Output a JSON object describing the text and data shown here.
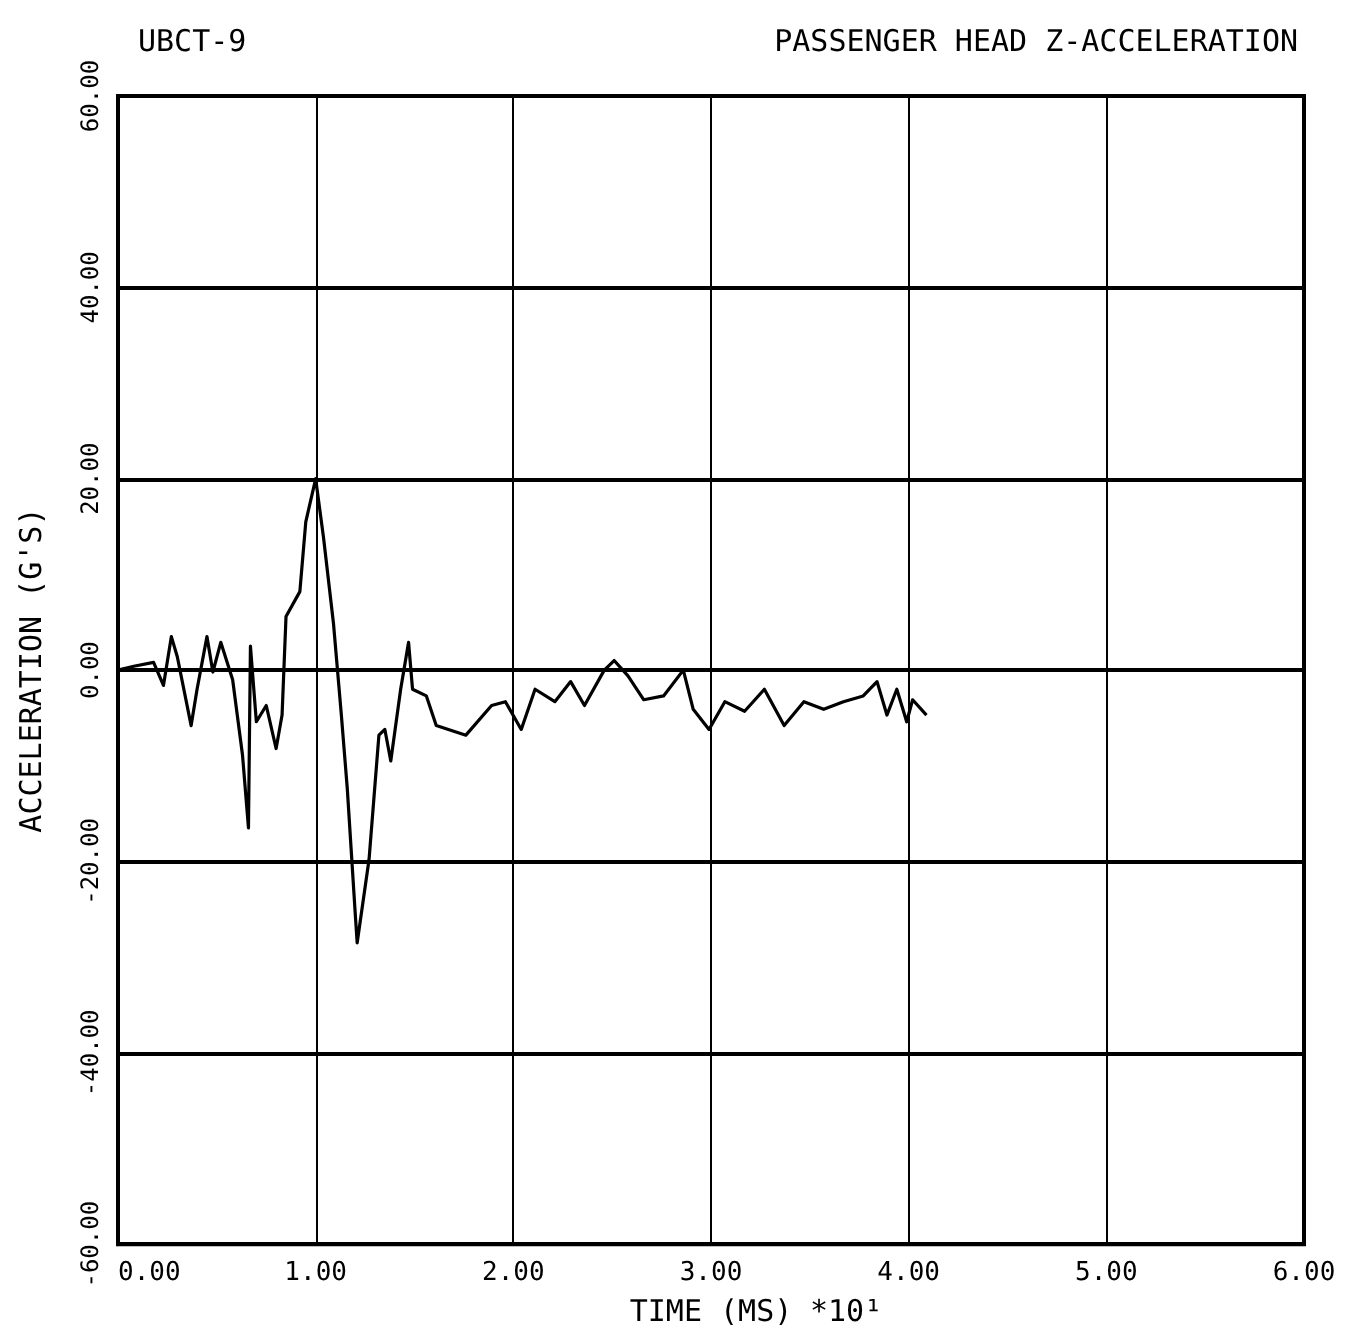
{
  "chart_data": {
    "type": "line",
    "title": "PASSENGER HEAD Z-ACCELERATION",
    "subtitle": "UBCT-9",
    "xlabel": "TIME (MS)",
    "ylabel": "ACCELERATION (G'S)",
    "annotations": [
      "*10¹"
    ],
    "x": [
      0,
      0.08,
      0.18,
      0.23,
      0.27,
      0.3,
      0.37,
      0.4,
      0.45,
      0.48,
      0.52,
      0.58,
      0.63,
      0.66,
      0.67,
      0.7,
      0.75,
      0.8,
      0.83,
      0.85,
      0.92,
      0.95,
      1.0,
      1.04,
      1.09,
      1.13,
      1.16,
      1.2,
      1.21,
      1.27,
      1.32,
      1.35,
      1.38,
      1.43,
      1.47,
      1.49,
      1.56,
      1.61,
      1.76,
      1.89,
      1.96,
      2.04,
      2.11,
      2.21,
      2.29,
      2.36,
      2.46,
      2.51,
      2.58,
      2.66,
      2.76,
      2.86,
      2.91,
      2.99,
      3.07,
      3.17,
      3.27,
      3.37,
      3.47,
      3.57,
      3.67,
      3.77,
      3.84,
      3.89,
      3.94,
      3.99,
      4.02,
      4.09
    ],
    "series": [
      {
        "color": "#000000",
        "values": [
          0,
          0.4,
          0.8,
          -1.6,
          3.5,
          1.4,
          -5.8,
          -2,
          3.5,
          -0.2,
          2.9,
          -1,
          -8.9,
          -16.5,
          2.5,
          -5.4,
          -3.7,
          -8.2,
          -4.7,
          5.6,
          8.2,
          15.5,
          20,
          13.8,
          4.9,
          -4.7,
          -12.4,
          -25.4,
          -28.5,
          -19.8,
          -6.8,
          -6.2,
          -9.5,
          -2,
          2.9,
          -2,
          -2.7,
          -5.8,
          -6.8,
          -3.7,
          -3.3,
          -6.2,
          -2,
          -3.3,
          -1.2,
          -3.7,
          0,
          1,
          -0.6,
          -3.1,
          -2.7,
          0,
          -4.1,
          -6.2,
          -3.3,
          -4.3,
          -2,
          -5.8,
          -3.3,
          -4.1,
          -3.3,
          -2.7,
          -1.2,
          -4.7,
          -2,
          -5.4,
          -3.1,
          -4.7
        ]
      }
    ],
    "xlim": [
      0,
      6
    ],
    "xticks": [
      {
        "value": 0,
        "label": "0.00"
      },
      {
        "value": 1,
        "label": "1.00"
      },
      {
        "value": 2,
        "label": "2.00"
      },
      {
        "value": 3,
        "label": "3.00"
      },
      {
        "value": 4,
        "label": "4.00"
      },
      {
        "value": 5,
        "label": "5.00"
      },
      {
        "value": 6,
        "label": "6.00"
      }
    ],
    "ylim": [
      -60,
      60
    ],
    "yticks": [
      {
        "value": -60,
        "label": "-60.00"
      },
      {
        "value": -40,
        "label": "-40.00"
      },
      {
        "value": -20,
        "label": "-20.00"
      },
      {
        "value": 0,
        "label": "0.00"
      },
      {
        "value": 20,
        "label": "20.00"
      },
      {
        "value": 40,
        "label": "40.00"
      },
      {
        "value": 60,
        "label": "60.00"
      }
    ],
    "grid": true,
    "marker": "none",
    "line_style": "solid"
  }
}
